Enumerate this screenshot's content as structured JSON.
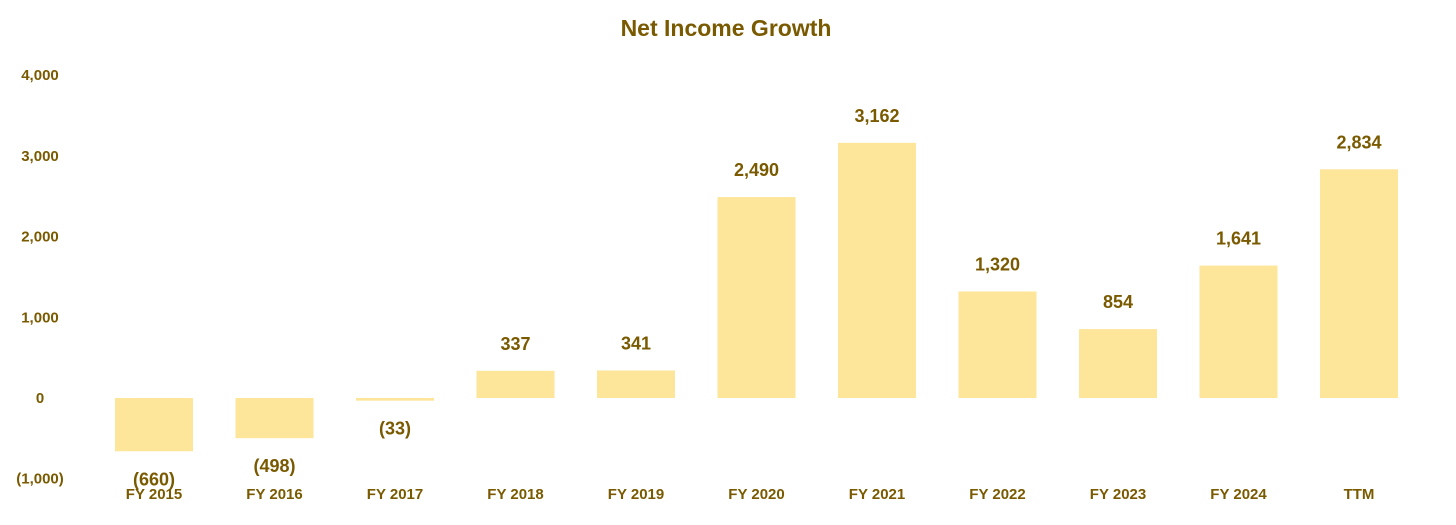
{
  "colors": {
    "bar": "#fde59a",
    "text": "#7a5a00"
  },
  "chart_data": {
    "type": "bar",
    "title": "Net Income Growth",
    "xlabel": "",
    "ylabel": "",
    "categories": [
      "FY 2015",
      "FY 2016",
      "FY 2017",
      "FY 2018",
      "FY 2019",
      "FY 2020",
      "FY 2021",
      "FY 2022",
      "FY 2023",
      "FY 2024",
      "TTM"
    ],
    "values": [
      -660,
      -498,
      -33,
      337,
      341,
      2490,
      3162,
      1320,
      854,
      1641,
      2834
    ],
    "value_labels": [
      "(660)",
      "(498)",
      "(33)",
      "337",
      "341",
      "2,490",
      "3,162",
      "1,320",
      "854",
      "1,641",
      "2,834"
    ],
    "yticks": [
      4000,
      3000,
      2000,
      1000,
      0,
      -1000
    ],
    "ytick_labels": [
      "4,000",
      "3,000",
      "2,000",
      "1,000",
      "0",
      "(1,000)"
    ],
    "ylim": [
      -1000,
      4000
    ],
    "grid": false,
    "legend": "none"
  }
}
